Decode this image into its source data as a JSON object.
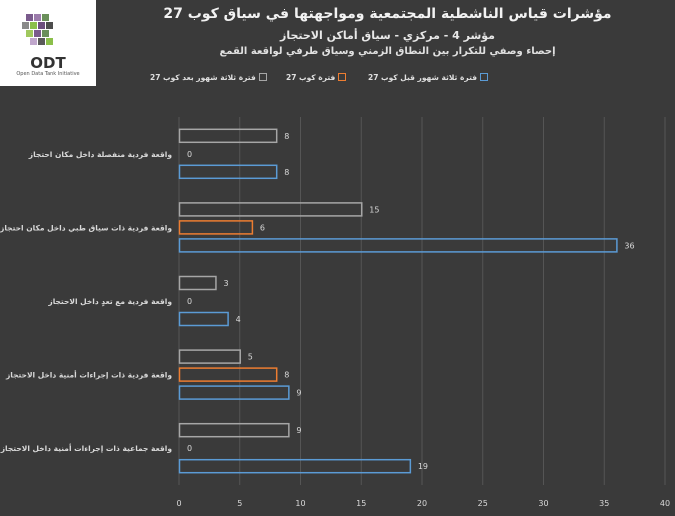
{
  "header": {
    "logo_text": "ODT",
    "logo_subtext": "Open Data Tank Initiative",
    "title": "مؤشرات قياس الناشطية المجتمعية ومواجهتها في سياق كوب 27",
    "subtitle1": "مؤشر 4 - مركزي - سياق أماكن الاحتجاز",
    "subtitle2": "إحصاء وصفي للتكرار بين النطاق الزمني وسياق طرفي لواقعة القمع"
  },
  "colors": {
    "background": "#3a3a3a",
    "grid": "#555555",
    "text": "#d9d9d9"
  },
  "chart_data": {
    "type": "bar",
    "orientation": "horizontal",
    "categories": [
      "واقعة فردية منفصلة داخل مكان احتجاز",
      "واقعة فردية ذات سياق طبي داخل مكان احتجاز",
      "واقعة فردية مع تعدٍ داخل الاحتجاز",
      "واقعة فردية ذات إجراءات أمنية داخل الاحتجاز",
      "واقعة جماعية ذات إجراءات أمنية داخل الاحتجاز"
    ],
    "series": [
      {
        "name": "فترة ثلاثة شهور بعد كوب 27",
        "color": "#a6a6a6",
        "values": [
          8,
          15,
          3,
          5,
          9
        ]
      },
      {
        "name": "فترة كوب 27",
        "color": "#ed7d31",
        "values": [
          0,
          6,
          0,
          8,
          0
        ]
      },
      {
        "name": "فترة ثلاثة شهور قبل كوب 27",
        "color": "#5b9bd5",
        "values": [
          8,
          36,
          4,
          9,
          19
        ]
      }
    ],
    "xlim": [
      0,
      40
    ],
    "xticks": [
      0,
      5,
      10,
      15,
      20,
      25,
      30,
      35,
      40
    ],
    "grid": true,
    "legend_position": "top"
  }
}
